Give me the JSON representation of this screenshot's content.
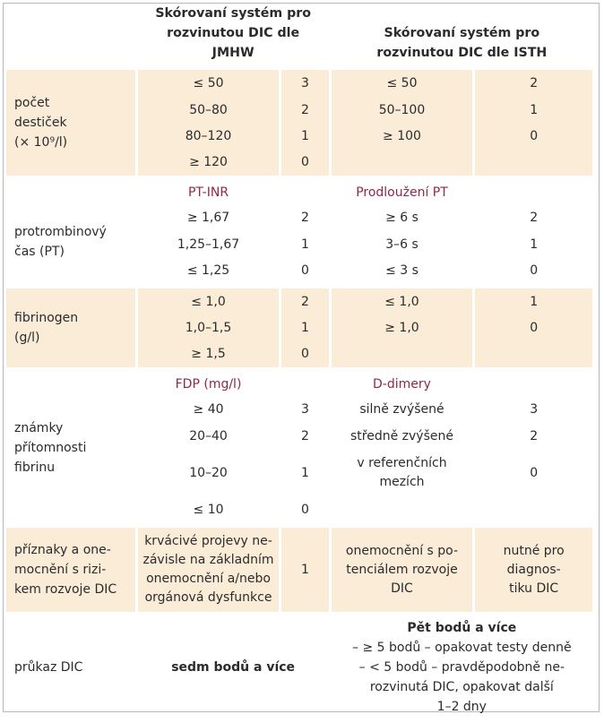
{
  "header": {
    "jmhw": "Skórovaní systém pro rozvinutou DIC dle JMHW",
    "isth": "Skórovaní systém pro rozvinutou DIC dle ISTH"
  },
  "platelets": {
    "label": "počet destiček (× 10⁹/l)",
    "label_lines": [
      "počet",
      "destiček",
      "(× 10⁹/l)"
    ],
    "rows": [
      {
        "jv": "≤ 50",
        "js": "3",
        "iv": "≤ 50",
        "is": "2"
      },
      {
        "jv": "50–80",
        "js": "2",
        "iv": "50–100",
        "is": "1"
      },
      {
        "jv": "80–120",
        "js": "1",
        "iv": "≥ 100",
        "is": "0"
      },
      {
        "jv": "≥ 120",
        "js": "0",
        "iv": "",
        "is": ""
      }
    ]
  },
  "pt": {
    "label_lines": [
      "protrombinový",
      "čas (PT)"
    ],
    "j_sub": "PT-INR",
    "i_sub": "Prodloužení PT",
    "rows": [
      {
        "jv": "≥ 1,67",
        "js": "2",
        "iv": "≥ 6 s",
        "is": "2"
      },
      {
        "jv": "1,25–1,67",
        "js": "1",
        "iv": "3–6 s",
        "is": "1"
      },
      {
        "jv": "≤ 1,25",
        "js": "0",
        "iv": "≤ 3 s",
        "is": "0"
      }
    ]
  },
  "fibrinogen": {
    "label_lines": [
      "fibrinogen",
      "(g/l)"
    ],
    "rows": [
      {
        "jv": "≤ 1,0",
        "js": "2",
        "iv": "≤ 1,0",
        "is": "1"
      },
      {
        "jv": "1,0–1,5",
        "js": "1",
        "iv": "≥ 1,0",
        "is": "0"
      },
      {
        "jv": "≥ 1,5",
        "js": "0",
        "iv": "",
        "is": ""
      }
    ]
  },
  "fibrin": {
    "label_lines": [
      "známky",
      "přítomnosti",
      "fibrinu"
    ],
    "j_sub": "FDP (mg/l)",
    "i_sub": "D-dimery",
    "rows": [
      {
        "jv": "≥ 40",
        "js": "3",
        "iv": "silně zvýšené",
        "is": "3"
      },
      {
        "jv": "20–40",
        "js": "2",
        "iv": "středně zvýšené",
        "is": "2"
      },
      {
        "jv": "10–20",
        "js": "1",
        "iv_lines": [
          "v referenčních",
          "mezích"
        ],
        "is": "0"
      },
      {
        "jv": "≤ 10",
        "js": "0",
        "iv": "",
        "is": ""
      }
    ]
  },
  "symptoms": {
    "label_lines": [
      "příznaky a one-",
      "mocnění s rizi-",
      "kem rozvoje DIC"
    ],
    "j_lines": [
      "krvácivé projevy ne-",
      "závisle na základním",
      "onemocnění a/nebo",
      "orgánová dysfunkce"
    ],
    "js": "1",
    "i_lines": [
      "onemocnění s po-",
      "tenciálem rozvoje",
      "DIC"
    ],
    "is_lines": [
      "nutné pro",
      "diagnos-",
      "tiku DIC"
    ]
  },
  "proof": {
    "label": "průkaz DIC",
    "jmhw": "sedm bodů a více",
    "isth_title": "Pět bodů a více",
    "isth_lines": [
      "– ≥ 5 bodů – opakovat testy denně",
      "– < 5 bodů – pravděpodobně ne-",
      "rozvinutá DIC, opakovat další",
      "1–2 dny"
    ]
  }
}
